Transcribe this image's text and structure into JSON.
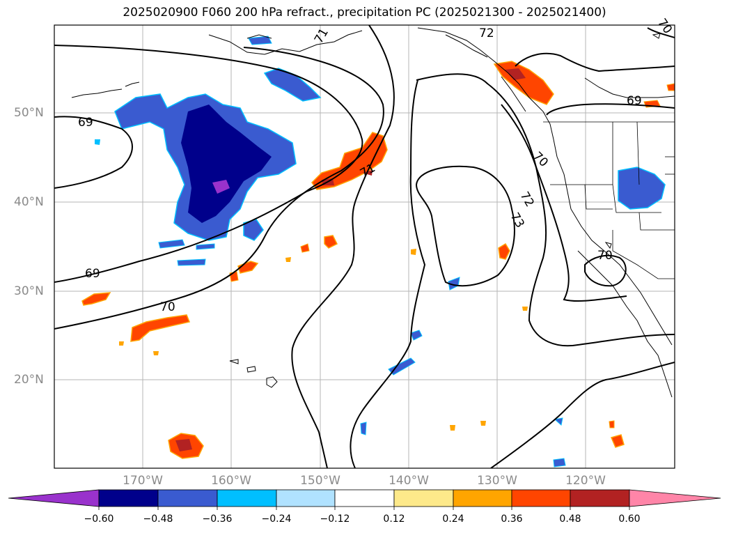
{
  "title": "2025020900 F060 200 hPa refract., precipitation PC (2025021300 - 2025021400)",
  "lat_labels": [
    "50°N",
    "40°N",
    "30°N",
    "20°N"
  ],
  "lon_labels": [
    "170°W",
    "160°W",
    "150°W",
    "140°W",
    "130°W",
    "120°W"
  ],
  "contour_labels": [
    "69",
    "69",
    "69",
    "70",
    "70",
    "70",
    "71",
    "71",
    "72",
    "72",
    "73",
    "70"
  ],
  "colorbar": {
    "ticks": [
      "−0.60",
      "−0.48",
      "−0.36",
      "−0.24",
      "−0.12",
      "0.12",
      "0.24",
      "0.36",
      "0.48",
      "0.60"
    ],
    "colors": [
      "#9932cc",
      "#00008b",
      "#3a5bd0",
      "#00bfff",
      "#b0e2ff",
      "#ffffff",
      "#fde98a",
      "#ffa500",
      "#ff4500",
      "#b22222",
      "#ff85a8"
    ]
  }
}
